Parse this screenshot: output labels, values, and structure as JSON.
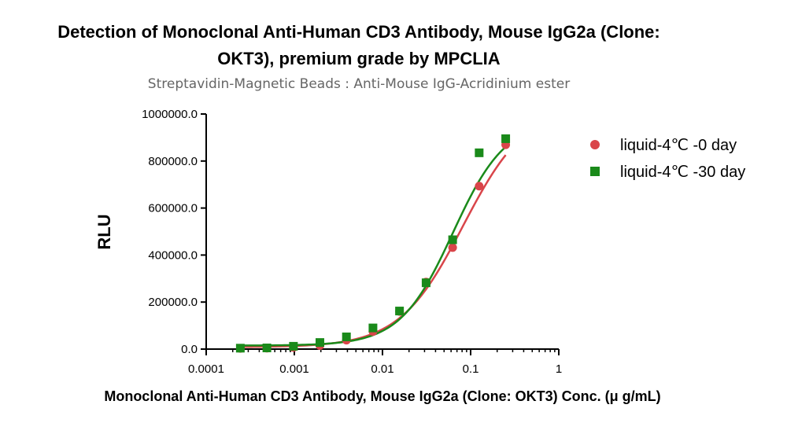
{
  "chart_data": {
    "type": "scatter",
    "title_line1": "Detection of Monoclonal Anti-Human CD3 Antibody, Mouse IgG2a (Clone:",
    "title_line2": "OKT3), premium grade by MPCLIA",
    "subtitle": "Streptavidin-Magnetic Beads : Anti-Mouse IgG-Acridinium ester",
    "xlabel": "Monoclonal Anti-Human CD3 Antibody, Mouse IgG2a (Clone: OKT3) Conc. (μ g/mL)",
    "ylabel": "RLU",
    "x_scale": "log",
    "xlim": [
      0.0001,
      1
    ],
    "ylim": [
      0,
      1000000
    ],
    "x_ticks": [
      0.0001,
      0.001,
      0.01,
      0.1,
      1
    ],
    "x_tick_labels": [
      "0.0001",
      "0.001",
      "0.01",
      "0.1",
      "1"
    ],
    "y_ticks": [
      0,
      200000,
      400000,
      600000,
      800000,
      1000000
    ],
    "y_tick_labels": [
      "0.0",
      "200000.0",
      "400000.0",
      "600000.0",
      "800000.0",
      "1000000.0"
    ],
    "grid": false,
    "legend_position": "top-right",
    "series": [
      {
        "name": "liquid-4℃ -0 day",
        "marker": "circle",
        "color": "#d9454a",
        "x": [
          0.000244,
          0.000488,
          0.000977,
          0.00195,
          0.0039,
          0.0078,
          0.0156,
          0.03125,
          0.0625,
          0.125,
          0.25
        ],
        "y": [
          3000,
          4000,
          7000,
          15000,
          38000,
          75000,
          160000,
          285000,
          432000,
          693000,
          869000
        ],
        "fit": {
          "bottom": 8000,
          "top": 1040000,
          "ec50": 0.082,
          "hill": 1.2
        }
      },
      {
        "name": "liquid-4℃ -30 day",
        "marker": "square",
        "color": "#1a8a1a",
        "x": [
          0.000244,
          0.000488,
          0.000977,
          0.00195,
          0.0039,
          0.0078,
          0.0156,
          0.03125,
          0.0625,
          0.125,
          0.25
        ],
        "y": [
          4000,
          5000,
          12000,
          28000,
          52000,
          90000,
          162000,
          282000,
          465000,
          835000,
          895000
        ],
        "fit": {
          "bottom": 15000,
          "top": 975000,
          "ec50": 0.063,
          "hill": 1.45
        }
      }
    ]
  }
}
